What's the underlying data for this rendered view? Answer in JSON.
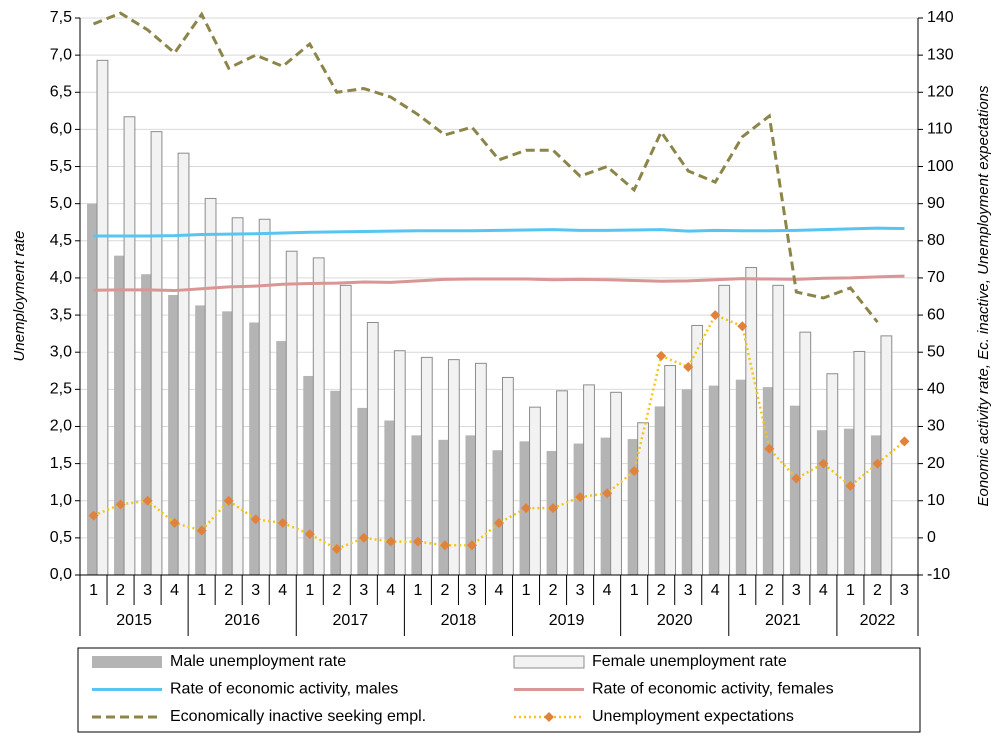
{
  "chart_data": {
    "type": "combo",
    "categories": [
      "1",
      "2",
      "3",
      "4",
      "1",
      "2",
      "3",
      "4",
      "1",
      "2",
      "3",
      "4",
      "1",
      "2",
      "3",
      "4",
      "1",
      "2",
      "3",
      "4",
      "1",
      "2",
      "3",
      "4",
      "1",
      "2",
      "3",
      "4",
      "1",
      "2",
      "3"
    ],
    "x_groups": [
      "2015",
      "2016",
      "2017",
      "2018",
      "2019",
      "2020",
      "2021",
      "2022"
    ],
    "ylabel": "Unemployment rate",
    "y2label": "Eonomic activity rate, Ec. inactive, Unemployment expectations",
    "ylim": [
      0,
      7.5
    ],
    "yticks": [
      {
        "value": 0,
        "label": "0,0"
      },
      {
        "value": 0.5,
        "label": "0,5"
      },
      {
        "value": 1,
        "label": "1,0"
      },
      {
        "value": 1.5,
        "label": "1,5"
      },
      {
        "value": 2,
        "label": "2,0"
      },
      {
        "value": 2.5,
        "label": "2,5"
      },
      {
        "value": 3,
        "label": "3,0"
      },
      {
        "value": 3.5,
        "label": "3,5"
      },
      {
        "value": 4,
        "label": "4,0"
      },
      {
        "value": 4.5,
        "label": "4,5"
      },
      {
        "value": 5,
        "label": "5,0"
      },
      {
        "value": 5.5,
        "label": "5,5"
      },
      {
        "value": 6,
        "label": "6,0"
      },
      {
        "value": 6.5,
        "label": "6,5"
      },
      {
        "value": 7,
        "label": "7,0"
      },
      {
        "value": 7.5,
        "label": "7,5"
      }
    ],
    "y2lim": [
      -10,
      140
    ],
    "y2ticks": [
      -10,
      0,
      10,
      20,
      30,
      40,
      50,
      60,
      70,
      80,
      90,
      100,
      110,
      120,
      130,
      140
    ],
    "grid": true,
    "series": [
      {
        "name": "Male unemployment rate",
        "kind": "bar",
        "color": "#b4b4b4",
        "values": [
          5.0,
          4.3,
          4.05,
          3.77,
          3.63,
          3.55,
          3.4,
          3.15,
          2.68,
          2.48,
          2.25,
          2.08,
          1.88,
          1.82,
          1.88,
          1.68,
          1.8,
          1.67,
          1.77,
          1.85,
          1.83,
          2.27,
          2.5,
          2.55,
          2.63,
          2.53,
          2.28,
          1.95,
          1.97,
          1.88,
          null
        ]
      },
      {
        "name": "Female unemployment rate",
        "kind": "bar",
        "color": "#f2f2f2",
        "stroke": "#8c8c8c",
        "values": [
          6.93,
          6.17,
          5.97,
          5.68,
          5.07,
          4.81,
          4.79,
          4.36,
          4.27,
          3.9,
          3.4,
          3.02,
          2.93,
          2.9,
          2.85,
          2.66,
          2.26,
          2.48,
          2.56,
          2.46,
          2.05,
          2.82,
          3.36,
          3.9,
          4.14,
          3.9,
          3.27,
          2.71,
          3.01,
          3.22,
          null
        ]
      },
      {
        "name": "Rate of economic activity, males",
        "kind": "line",
        "axis": "y2",
        "color": "#56c5f2",
        "line_style": "solid",
        "values": [
          81.3,
          81.3,
          81.3,
          81.4,
          81.7,
          81.8,
          81.9,
          82.1,
          82.3,
          82.4,
          82.5,
          82.6,
          82.7,
          82.7,
          82.7,
          82.8,
          82.9,
          83.0,
          82.8,
          82.8,
          82.9,
          83.0,
          82.6,
          82.8,
          82.7,
          82.7,
          82.8,
          83.0,
          83.2,
          83.4,
          83.3
        ]
      },
      {
        "name": "Rate of economic activity, females",
        "kind": "line",
        "axis": "y2",
        "color": "#d99694",
        "line_style": "solid",
        "values": [
          66.7,
          66.8,
          66.8,
          66.6,
          67.1,
          67.6,
          67.8,
          68.3,
          68.5,
          68.6,
          68.9,
          68.8,
          69.2,
          69.6,
          69.7,
          69.7,
          69.7,
          69.5,
          69.6,
          69.5,
          69.3,
          69.1,
          69.2,
          69.5,
          69.8,
          69.7,
          69.6,
          69.9,
          70.0,
          70.3,
          70.5
        ]
      },
      {
        "name": "Economically inactive seeking empl.",
        "kind": "line",
        "axis": "y2",
        "color": "#8c8549",
        "line_style": "dashed",
        "values": [
          138.4,
          141.3,
          136.8,
          130.6,
          141.0,
          126.5,
          130.0,
          127.0,
          133.0,
          120.0,
          121.0,
          118.7,
          114.0,
          108.5,
          110.6,
          101.8,
          104.4,
          104.4,
          97.4,
          100.0,
          93.7,
          109.3,
          98.8,
          95.8,
          108.0,
          113.6,
          66.2,
          64.6,
          67.3,
          58.1,
          null
        ]
      },
      {
        "name": "Unemployment expectations",
        "kind": "line",
        "axis": "y2",
        "color": "#f5c518",
        "line_style": "dotted",
        "marker": "diamond",
        "marker_color": "#e0823c",
        "values": [
          6,
          9,
          10,
          4,
          2,
          10,
          5,
          4,
          1,
          -3,
          0,
          -1,
          -1,
          -2,
          -2,
          4,
          8,
          8,
          11,
          12,
          18,
          49,
          46,
          60,
          57,
          24,
          16,
          20,
          14,
          20,
          26
        ]
      }
    ]
  }
}
